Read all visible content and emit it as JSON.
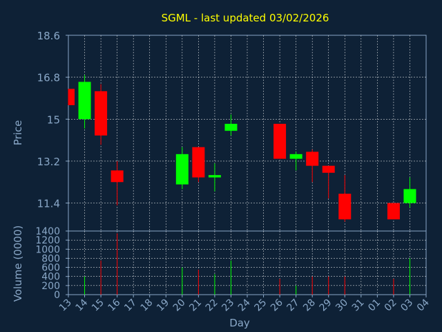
{
  "chart_data": {
    "type": "candlestick",
    "title": "SGML - last updated 03/02/2026",
    "xlabel": "Day",
    "ylabel": "Price",
    "volume_label": "Volume (0000)",
    "x_ticks": [
      "13",
      "14",
      "15",
      "16",
      "17",
      "18",
      "19",
      "20",
      "21",
      "22",
      "23",
      "24",
      "25",
      "26",
      "27",
      "28",
      "29",
      "30",
      "31",
      "01",
      "02",
      "03",
      "04"
    ],
    "price_ticks": [
      "18.6",
      "16.8",
      "15",
      "13.2",
      "11.4"
    ],
    "price_range": [
      10.2,
      18.6
    ],
    "volume_ticks": [
      "1400",
      "1200",
      "1000",
      "800",
      "600",
      "400",
      "200",
      "0"
    ],
    "volume_range": [
      0,
      1400
    ],
    "grid": true,
    "colors": {
      "background": "#0e2136",
      "plot_border": "#8aa8c8",
      "grid": "#ffffff",
      "axis_text": "#8aa8c8",
      "title": "#ffff00",
      "up": "#00ff00",
      "down": "#ff0000"
    },
    "candles": [
      {
        "day": "13",
        "open": 16.3,
        "close": 15.6,
        "high": 16.3,
        "low": 15.6,
        "volume": 0
      },
      {
        "day": "14",
        "open": 15.0,
        "close": 16.6,
        "high": 16.9,
        "low": 14.6,
        "volume": 400
      },
      {
        "day": "15",
        "open": 16.2,
        "close": 14.3,
        "high": 16.5,
        "low": 13.9,
        "volume": 750
      },
      {
        "day": "16",
        "open": 12.8,
        "close": 12.3,
        "high": 13.2,
        "low": 11.3,
        "volume": 1350
      },
      {
        "day": "20",
        "open": 12.2,
        "close": 13.5,
        "high": 13.8,
        "low": 12.0,
        "volume": 600
      },
      {
        "day": "21",
        "open": 13.8,
        "close": 12.5,
        "high": 13.8,
        "low": 12.3,
        "volume": 550
      },
      {
        "day": "22",
        "open": 12.5,
        "close": 12.6,
        "high": 13.1,
        "low": 11.9,
        "volume": 450
      },
      {
        "day": "23",
        "open": 14.5,
        "close": 14.8,
        "high": 15.2,
        "low": 14.3,
        "volume": 750
      },
      {
        "day": "26",
        "open": 14.8,
        "close": 13.3,
        "high": 14.8,
        "low": 13.3,
        "volume": 350
      },
      {
        "day": "27",
        "open": 13.3,
        "close": 13.5,
        "high": 13.6,
        "low": 12.8,
        "volume": 200
      },
      {
        "day": "28",
        "open": 13.6,
        "close": 13.0,
        "high": 13.7,
        "low": 12.3,
        "volume": 400
      },
      {
        "day": "29",
        "open": 13.0,
        "close": 12.7,
        "high": 13.0,
        "low": 11.6,
        "volume": 400
      },
      {
        "day": "30",
        "open": 11.8,
        "close": 10.7,
        "high": 12.6,
        "low": 10.6,
        "volume": 400
      },
      {
        "day": "02",
        "open": 11.4,
        "close": 10.7,
        "high": 11.4,
        "low": 10.7,
        "volume": 350
      },
      {
        "day": "03",
        "open": 11.4,
        "close": 12.0,
        "high": 12.5,
        "low": 11.2,
        "volume": 800
      }
    ]
  }
}
